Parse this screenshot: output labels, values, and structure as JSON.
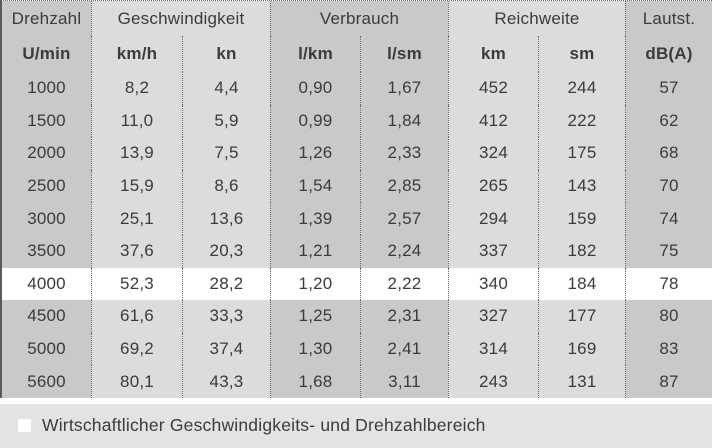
{
  "chart_data": {
    "type": "table",
    "columns": [
      "Drehzahl U/min",
      "Geschwindigkeit km/h",
      "Geschwindigkeit kn",
      "Verbrauch l/km",
      "Verbrauch l/sm",
      "Reichweite km",
      "Reichweite sm",
      "Lautst. dB(A)"
    ],
    "rows": [
      [
        1000,
        8.2,
        4.4,
        0.9,
        1.67,
        452,
        244,
        57
      ],
      [
        1500,
        11.0,
        5.9,
        0.99,
        1.84,
        412,
        222,
        62
      ],
      [
        2000,
        13.9,
        7.5,
        1.26,
        2.33,
        324,
        175,
        68
      ],
      [
        2500,
        15.9,
        8.6,
        1.54,
        2.85,
        265,
        143,
        70
      ],
      [
        3000,
        25.1,
        13.6,
        1.39,
        2.57,
        294,
        159,
        74
      ],
      [
        3500,
        37.6,
        20.3,
        1.21,
        2.24,
        337,
        182,
        75
      ],
      [
        4000,
        52.3,
        28.2,
        1.2,
        2.22,
        340,
        184,
        78
      ],
      [
        4500,
        61.6,
        33.3,
        1.25,
        2.31,
        327,
        177,
        80
      ],
      [
        5000,
        69.2,
        37.4,
        1.3,
        2.41,
        314,
        169,
        83
      ],
      [
        5600,
        80.1,
        43.3,
        1.68,
        3.11,
        243,
        131,
        87
      ]
    ],
    "highlighted_row_index": 6,
    "legend": "Wirtschaftlicher Geschwindigkeits- und Drehzahlbereich"
  },
  "table": {
    "groups": [
      {
        "label": "Drehzahl"
      },
      {
        "label": "Geschwindigkeit"
      },
      {
        "label": "Verbrauch"
      },
      {
        "label": "Reichweite"
      },
      {
        "label": "Lautst."
      }
    ],
    "units": [
      "U/min",
      "km/h",
      "kn",
      "l/km",
      "l/sm",
      "km",
      "sm",
      "dB(A)"
    ],
    "rows": [
      {
        "cells": [
          "1000",
          "8,2",
          "4,4",
          "0,90",
          "1,67",
          "452",
          "244",
          "57"
        ]
      },
      {
        "cells": [
          "1500",
          "11,0",
          "5,9",
          "0,99",
          "1,84",
          "412",
          "222",
          "62"
        ]
      },
      {
        "cells": [
          "2000",
          "13,9",
          "7,5",
          "1,26",
          "2,33",
          "324",
          "175",
          "68"
        ]
      },
      {
        "cells": [
          "2500",
          "15,9",
          "8,6",
          "1,54",
          "2,85",
          "265",
          "143",
          "70"
        ]
      },
      {
        "cells": [
          "3000",
          "25,1",
          "13,6",
          "1,39",
          "2,57",
          "294",
          "159",
          "74"
        ]
      },
      {
        "cells": [
          "3500",
          "37,6",
          "20,3",
          "1,21",
          "2,24",
          "337",
          "182",
          "75"
        ]
      },
      {
        "cells": [
          "4000",
          "52,3",
          "28,2",
          "1,20",
          "2,22",
          "340",
          "184",
          "78"
        ]
      },
      {
        "cells": [
          "4500",
          "61,6",
          "33,3",
          "1,25",
          "2,31",
          "327",
          "177",
          "80"
        ]
      },
      {
        "cells": [
          "5000",
          "69,2",
          "37,4",
          "1,30",
          "2,41",
          "314",
          "169",
          "83"
        ]
      },
      {
        "cells": [
          "5600",
          "80,1",
          "43,3",
          "1,68",
          "3,11",
          "243",
          "131",
          "87"
        ]
      }
    ]
  },
  "legend": {
    "label": "Wirtschaftlicher Geschwindigkeits- und Drehzahlbereich"
  },
  "colors": {
    "column_shade_dark": "#c9c9c9",
    "column_shade_light": "#dcdcdc",
    "highlight_row": "#ffffff",
    "legend_band": "#e3e3e3",
    "text": "#3b3b3b"
  }
}
